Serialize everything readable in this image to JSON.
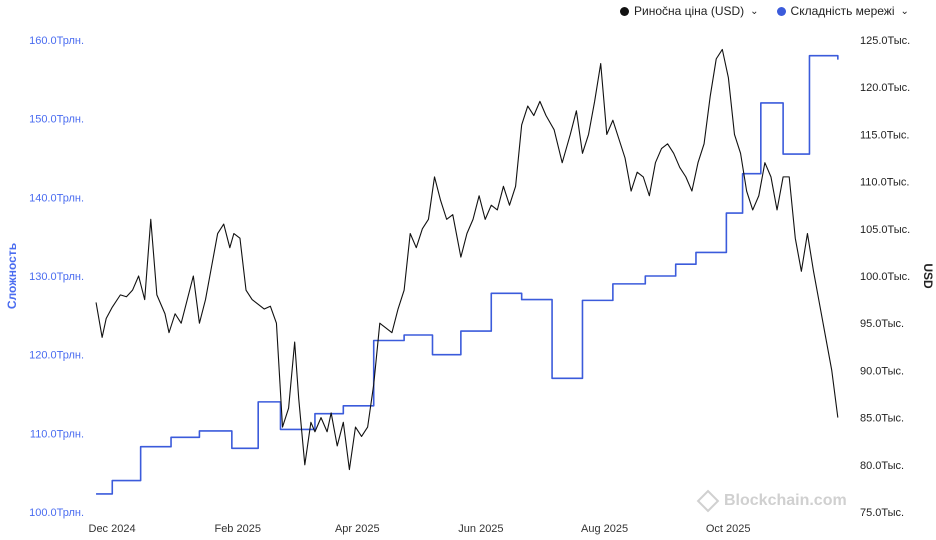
{
  "legend": {
    "price_label": "Ринočна ціна (USD)",
    "difficulty_label": "Складність мережі"
  },
  "watermark": "Blockchain.com",
  "colors": {
    "price": "#111111",
    "difficulty": "#3b5bdb",
    "left_axis_text": "#4a6cf0"
  },
  "chart_data": {
    "type": "line",
    "xlabel": "",
    "ylabel_left": "Сложность",
    "ylabel_right": "USD",
    "x_ticks": [
      "Dec 2024",
      "Feb 2025",
      "Apr 2025",
      "Jun 2025",
      "Aug 2025",
      "Oct 2025"
    ],
    "x_tick_days": [
      0,
      62,
      121,
      182,
      243,
      304
    ],
    "xlim_days": [
      -2,
      372
    ],
    "left_axis": {
      "range": [
        100.0,
        160.0
      ],
      "ticks": [
        "100.0Трлн.",
        "110.0Трлн.",
        "120.0Трлн.",
        "130.0Трлн.",
        "140.0Трлн.",
        "150.0Трлн.",
        "160.0Трлн."
      ],
      "tick_values": [
        100,
        110,
        120,
        130,
        140,
        150,
        160
      ]
    },
    "right_axis": {
      "range": [
        75000,
        125000
      ],
      "ticks": [
        "75.0Тыс.",
        "80.0Тыс.",
        "85.0Тыс.",
        "90.0Тыс.",
        "95.0Тыс.",
        "100.0Тыс.",
        "105.0Тыс.",
        "110.0Тыс.",
        "115.0Тыс.",
        "120.0Тыс.",
        "125.0Тыс."
      ],
      "tick_values": [
        75000,
        80000,
        85000,
        90000,
        95000,
        100000,
        105000,
        110000,
        115000,
        120000,
        125000
      ]
    },
    "series": [
      {
        "name": "Складність мережі",
        "axis": "left",
        "step": true,
        "x": [
          0,
          8,
          22,
          37,
          51,
          67,
          80,
          91,
          108,
          122,
          137,
          152,
          166,
          180,
          195,
          210,
          225,
          240,
          255,
          271,
          286,
          296,
          311,
          319,
          328,
          339,
          352,
          366
        ],
        "y": [
          102.3,
          104.0,
          108.3,
          109.5,
          110.3,
          108.1,
          114.0,
          110.5,
          112.5,
          113.5,
          121.8,
          122.5,
          120.0,
          123.0,
          127.8,
          127.0,
          117.0,
          126.9,
          129.0,
          130.0,
          131.5,
          133.0,
          138.0,
          143.0,
          152.0,
          145.5,
          158.0,
          157.5
        ]
      },
      {
        "name": "Риночна ціна (USD)",
        "axis": "right",
        "x": [
          0,
          3,
          5,
          8,
          12,
          15,
          18,
          21,
          24,
          27,
          30,
          34,
          36,
          39,
          42,
          45,
          48,
          51,
          54,
          57,
          60,
          63,
          66,
          68,
          71,
          74,
          77,
          80,
          83,
          86,
          89,
          92,
          95,
          98,
          100,
          103,
          106,
          108,
          111,
          114,
          116,
          119,
          122,
          125,
          128,
          131,
          134,
          137,
          140,
          143,
          146,
          149,
          152,
          155,
          158,
          161,
          164,
          167,
          170,
          173,
          176,
          180,
          183,
          186,
          189,
          192,
          195,
          198,
          201,
          204,
          207,
          210,
          213,
          216,
          219,
          222,
          226,
          230,
          234,
          237,
          240,
          243,
          246,
          249,
          252,
          255,
          258,
          261,
          264,
          267,
          270,
          273,
          276,
          279,
          282,
          285,
          288,
          291,
          294,
          297,
          300,
          303,
          306,
          309,
          312,
          315,
          318,
          321,
          324,
          327,
          330,
          333,
          336,
          339,
          342,
          345,
          348,
          351,
          354,
          357,
          360,
          363,
          366
        ],
        "y": [
          97.2,
          93.5,
          95.5,
          96.7,
          98.0,
          97.8,
          98.5,
          100.0,
          97.5,
          106.0,
          98.0,
          96.0,
          94.0,
          96.0,
          95.0,
          97.5,
          100.0,
          95.0,
          97.5,
          101.0,
          104.5,
          105.5,
          103.0,
          104.5,
          104.0,
          98.5,
          97.5,
          97.0,
          96.5,
          96.8,
          95.0,
          84.0,
          86.0,
          93.0,
          87.0,
          80.0,
          84.5,
          83.5,
          85.0,
          83.5,
          85.5,
          82.0,
          84.5,
          79.5,
          84.0,
          83.0,
          84.0,
          88.5,
          95.0,
          94.5,
          94.0,
          96.5,
          98.5,
          104.5,
          103.0,
          105.0,
          106.0,
          110.5,
          108.0,
          106.0,
          106.5,
          102.0,
          104.5,
          106.0,
          108.5,
          106.0,
          107.5,
          107.0,
          109.5,
          107.5,
          109.5,
          116.0,
          118.0,
          117.0,
          118.5,
          117.0,
          115.5,
          112.0,
          115.0,
          117.5,
          113.0,
          115.0,
          118.5,
          122.5,
          115.0,
          116.5,
          114.5,
          112.5,
          109.0,
          111.0,
          110.5,
          108.5,
          112.0,
          113.5,
          114.0,
          113.0,
          111.5,
          110.5,
          109.0,
          112.0,
          114.0,
          119.0,
          123.0,
          124.0,
          121.0,
          115.0,
          113.0,
          109.0,
          107.0,
          108.5,
          112.0,
          110.5,
          107.0,
          110.5,
          110.5,
          104.0,
          100.5,
          104.5,
          100.5,
          97.0,
          93.5,
          90.0,
          85.0
        ]
      }
    ],
    "grid": false,
    "legend_position": "top-right"
  }
}
